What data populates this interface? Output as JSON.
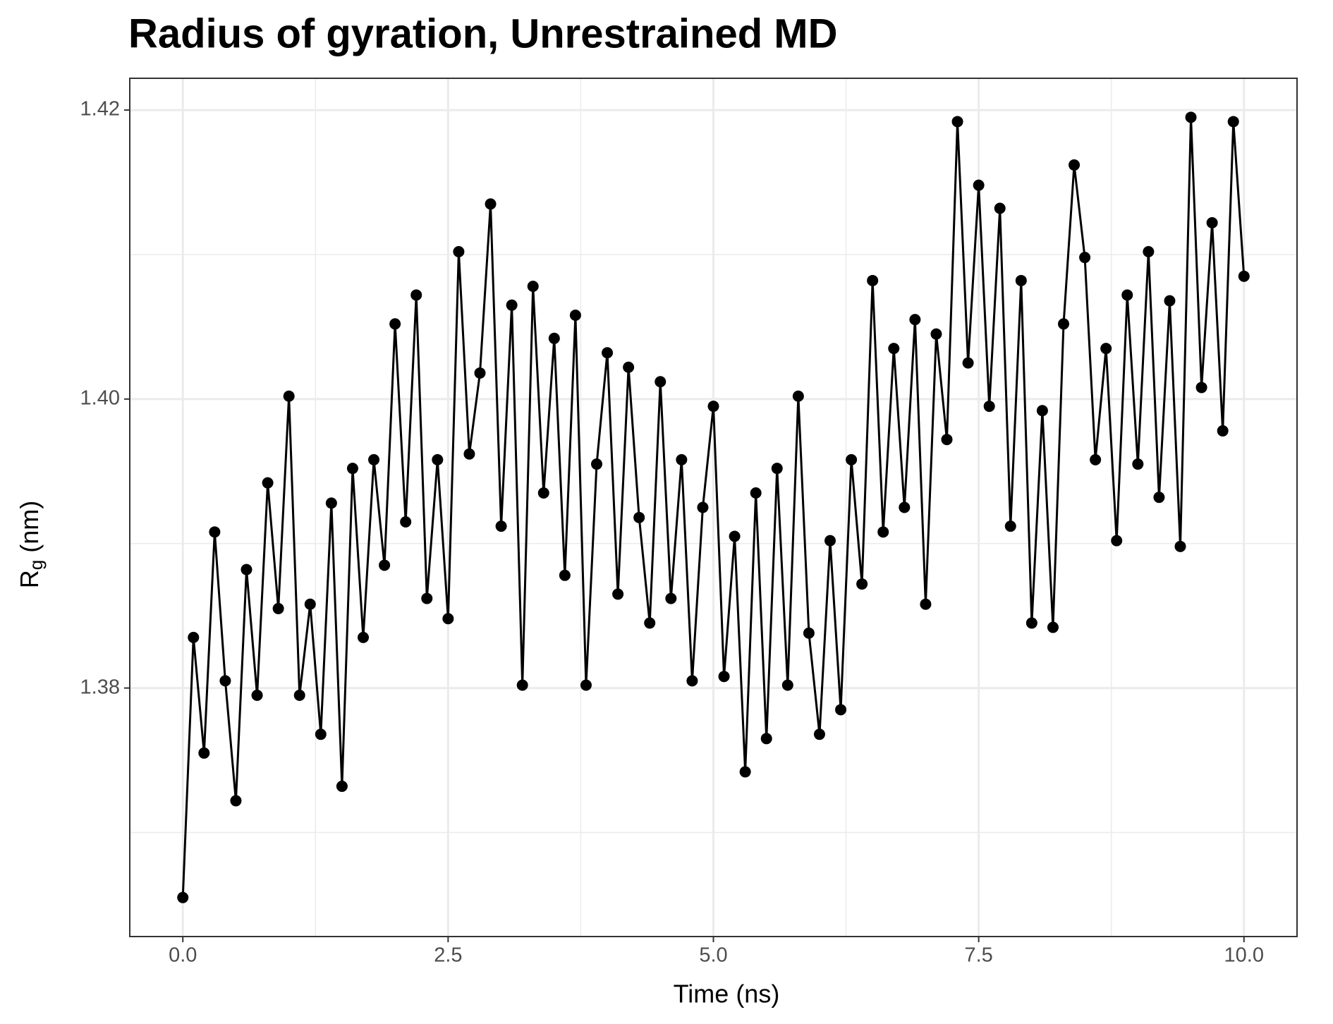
{
  "chart_data": {
    "type": "line",
    "title": "Radius of gyration, Unrestrained MD",
    "x_label": "Time (ns)",
    "y_label_symbol": "R",
    "y_label_subscript": "g",
    "y_label_unit": "(nm)",
    "x": [
      0.0,
      0.1,
      0.2,
      0.3,
      0.4,
      0.5,
      0.6,
      0.7,
      0.8,
      0.9,
      1.0,
      1.1,
      1.2,
      1.3,
      1.4,
      1.5,
      1.6,
      1.7,
      1.8,
      1.9,
      2.0,
      2.1,
      2.2,
      2.3,
      2.4,
      2.5,
      2.6,
      2.7,
      2.8,
      2.9,
      3.0,
      3.1,
      3.2,
      3.3,
      3.4,
      3.5,
      3.6,
      3.7,
      3.8,
      3.9,
      4.0,
      4.1,
      4.2,
      4.3,
      4.4,
      4.5,
      4.6,
      4.7,
      4.8,
      4.9,
      5.0,
      5.1,
      5.2,
      5.3,
      5.4,
      5.5,
      5.6,
      5.7,
      5.8,
      5.9,
      6.0,
      6.1,
      6.2,
      6.3,
      6.4,
      6.5,
      6.6,
      6.7,
      6.8,
      6.9,
      7.0,
      7.1,
      7.2,
      7.3,
      7.4,
      7.5,
      7.6,
      7.7,
      7.8,
      7.9,
      8.0,
      8.1,
      8.2,
      8.3,
      8.4,
      8.5,
      8.6,
      8.7,
      8.8,
      8.9,
      9.0,
      9.1,
      9.2,
      9.3,
      9.4,
      9.5,
      9.6,
      9.7,
      9.8,
      9.9,
      10.0
    ],
    "series": [
      {
        "color": "#000000",
        "values": [
          1.3655,
          1.3835,
          1.3755,
          1.3908,
          1.3805,
          1.3722,
          1.3882,
          1.3795,
          1.3942,
          1.3855,
          1.4002,
          1.3795,
          1.3858,
          1.3768,
          1.3928,
          1.3732,
          1.3952,
          1.3835,
          1.3958,
          1.3885,
          1.4052,
          1.3915,
          1.4072,
          1.3862,
          1.3958,
          1.3848,
          1.4102,
          1.3962,
          1.4018,
          1.4135,
          1.3912,
          1.4065,
          1.3802,
          1.4078,
          1.3935,
          1.4042,
          1.3878,
          1.4058,
          1.3802,
          1.3955,
          1.4032,
          1.3865,
          1.4022,
          1.3918,
          1.3845,
          1.4012,
          1.3862,
          1.3958,
          1.3805,
          1.3925,
          1.3995,
          1.3808,
          1.3905,
          1.3742,
          1.3935,
          1.3765,
          1.3952,
          1.3802,
          1.4002,
          1.3838,
          1.3768,
          1.3902,
          1.3785,
          1.3958,
          1.3872,
          1.4082,
          1.3908,
          1.4035,
          1.3925,
          1.4055,
          1.3858,
          1.4045,
          1.3972,
          1.4192,
          1.4025,
          1.4148,
          1.3995,
          1.4132,
          1.3912,
          1.4082,
          1.3845,
          1.3992,
          1.3842,
          1.4052,
          1.4162,
          1.4098,
          1.3958,
          1.4035,
          1.3902,
          1.4072,
          1.3955,
          1.4102,
          1.3932,
          1.4068,
          1.3898,
          1.4195,
          1.4008,
          1.4122,
          1.3978,
          1.4192,
          1.4085
        ]
      }
    ],
    "xlim": [
      -0.5,
      10.5
    ],
    "ylim": [
      1.3628,
      1.4222
    ],
    "xticks": [
      {
        "value": 0,
        "label": "0.0"
      },
      2.5,
      {
        "value": 5,
        "label": "5.0"
      },
      7.5,
      {
        "value": 10,
        "label": "10.0"
      }
    ],
    "yticks": [
      1.38,
      {
        "value": 1.4,
        "label": "1.40"
      },
      1.42
    ],
    "xminor": [
      1.25,
      3.75,
      6.25,
      8.75
    ],
    "yminor": [
      1.37,
      1.39,
      1.41
    ],
    "grid": true
  }
}
